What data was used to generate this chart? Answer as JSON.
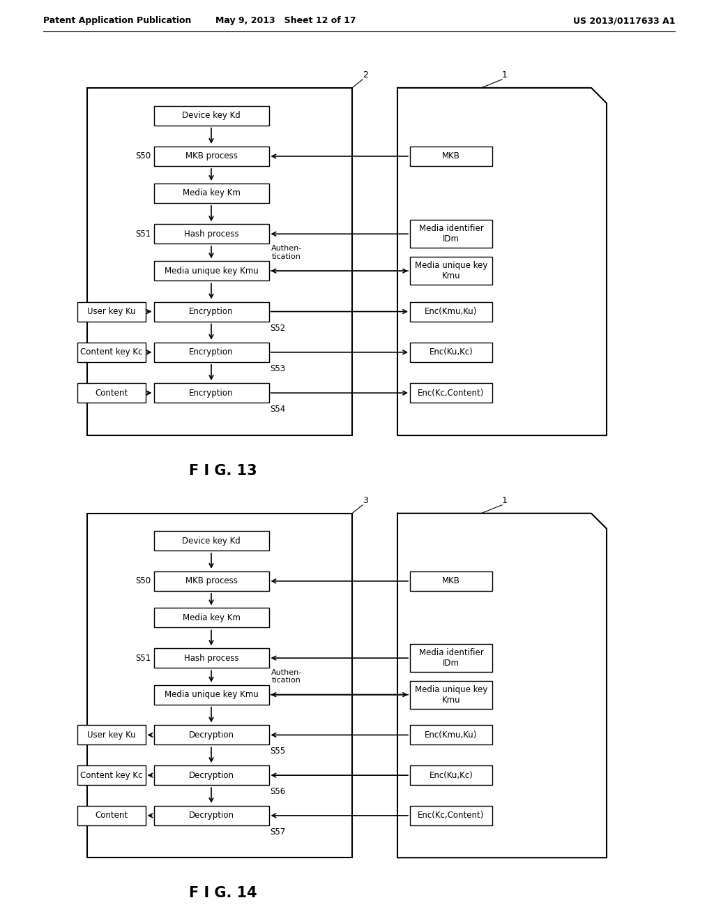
{
  "header_left": "Patent Application Publication",
  "header_mid": "May 9, 2013   Sheet 12 of 17",
  "header_right": "US 2013/0117633 A1",
  "fig13_label": "F I G. 13",
  "fig14_label": "F I G. 14"
}
